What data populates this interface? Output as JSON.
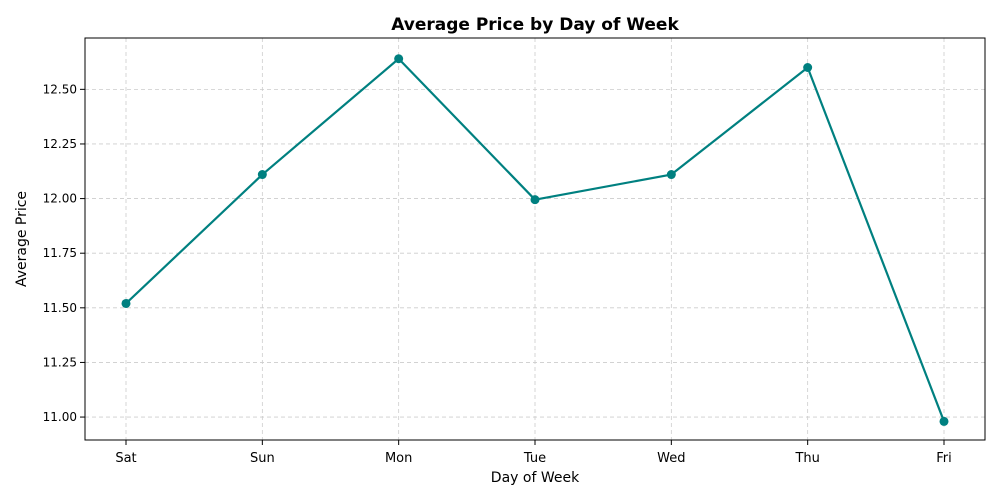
{
  "chart_data": {
    "type": "line",
    "title": "Average Price by Day of Week",
    "xlabel": "Day of Week",
    "ylabel": "Average Price",
    "categories": [
      "Sat",
      "Sun",
      "Mon",
      "Tue",
      "Wed",
      "Thu",
      "Fri"
    ],
    "series": [
      {
        "name": "Average Price",
        "values": [
          11.52,
          12.11,
          12.64,
          11.995,
          12.11,
          12.6,
          10.98
        ]
      }
    ],
    "ylim": [
      10.895,
      12.735
    ],
    "yticks": [
      11.0,
      11.25,
      11.5,
      11.75,
      12.0,
      12.25,
      12.5
    ],
    "ytick_labels": [
      "11.00",
      "11.25",
      "11.50",
      "11.75",
      "12.00",
      "12.25",
      "12.50"
    ],
    "grid": true,
    "line_color": "#008080"
  }
}
